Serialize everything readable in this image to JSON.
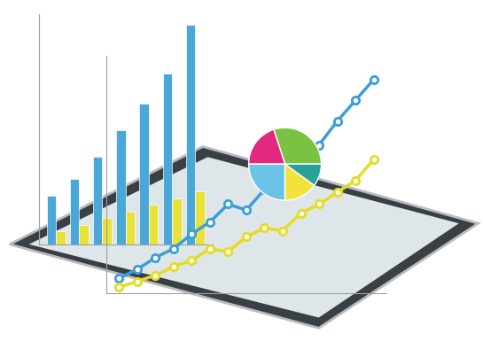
{
  "chart_data": [
    {
      "type": "bar",
      "categories": [
        null,
        null,
        null,
        null,
        null,
        null,
        null
      ],
      "series": [
        {
          "color": "#4aa8d8",
          "values": [
            22,
            30,
            40,
            52,
            64,
            78,
            100
          ]
        },
        {
          "color": "#e8e23a",
          "values": [
            6,
            9,
            12,
            15,
            18,
            21,
            24
          ]
        }
      ],
      "ylim": [
        0,
        105
      ],
      "yticks": [],
      "grid": false,
      "tick_labels": false
    },
    {
      "type": "line",
      "categories": [
        null,
        null,
        null,
        null,
        null,
        null,
        null,
        null,
        null,
        null,
        null,
        null,
        null,
        null,
        null
      ],
      "series": [
        {
          "color": "#3b9fd6",
          "marker": "circle",
          "line_style": "solid",
          "values": [
            5,
            8,
            12,
            15,
            20,
            24,
            30,
            28,
            35,
            42,
            40,
            50,
            58,
            65,
            72
          ]
        },
        {
          "color": "#e6dc20",
          "marker": "circle",
          "line_style": "solid",
          "values": [
            2,
            4,
            6,
            9,
            11,
            15,
            14,
            19,
            22,
            21,
            27,
            30,
            34,
            38,
            45
          ]
        }
      ],
      "ylim": [
        0,
        80
      ],
      "yticks": [],
      "grid": false,
      "tick_labels": false
    },
    {
      "type": "pie",
      "values": [
        30,
        20,
        25,
        15,
        10
      ],
      "colors": [
        "#7cc242",
        "#e0297f",
        "#6cc3e8",
        "#f2e23c",
        "#2aa198"
      ]
    }
  ]
}
